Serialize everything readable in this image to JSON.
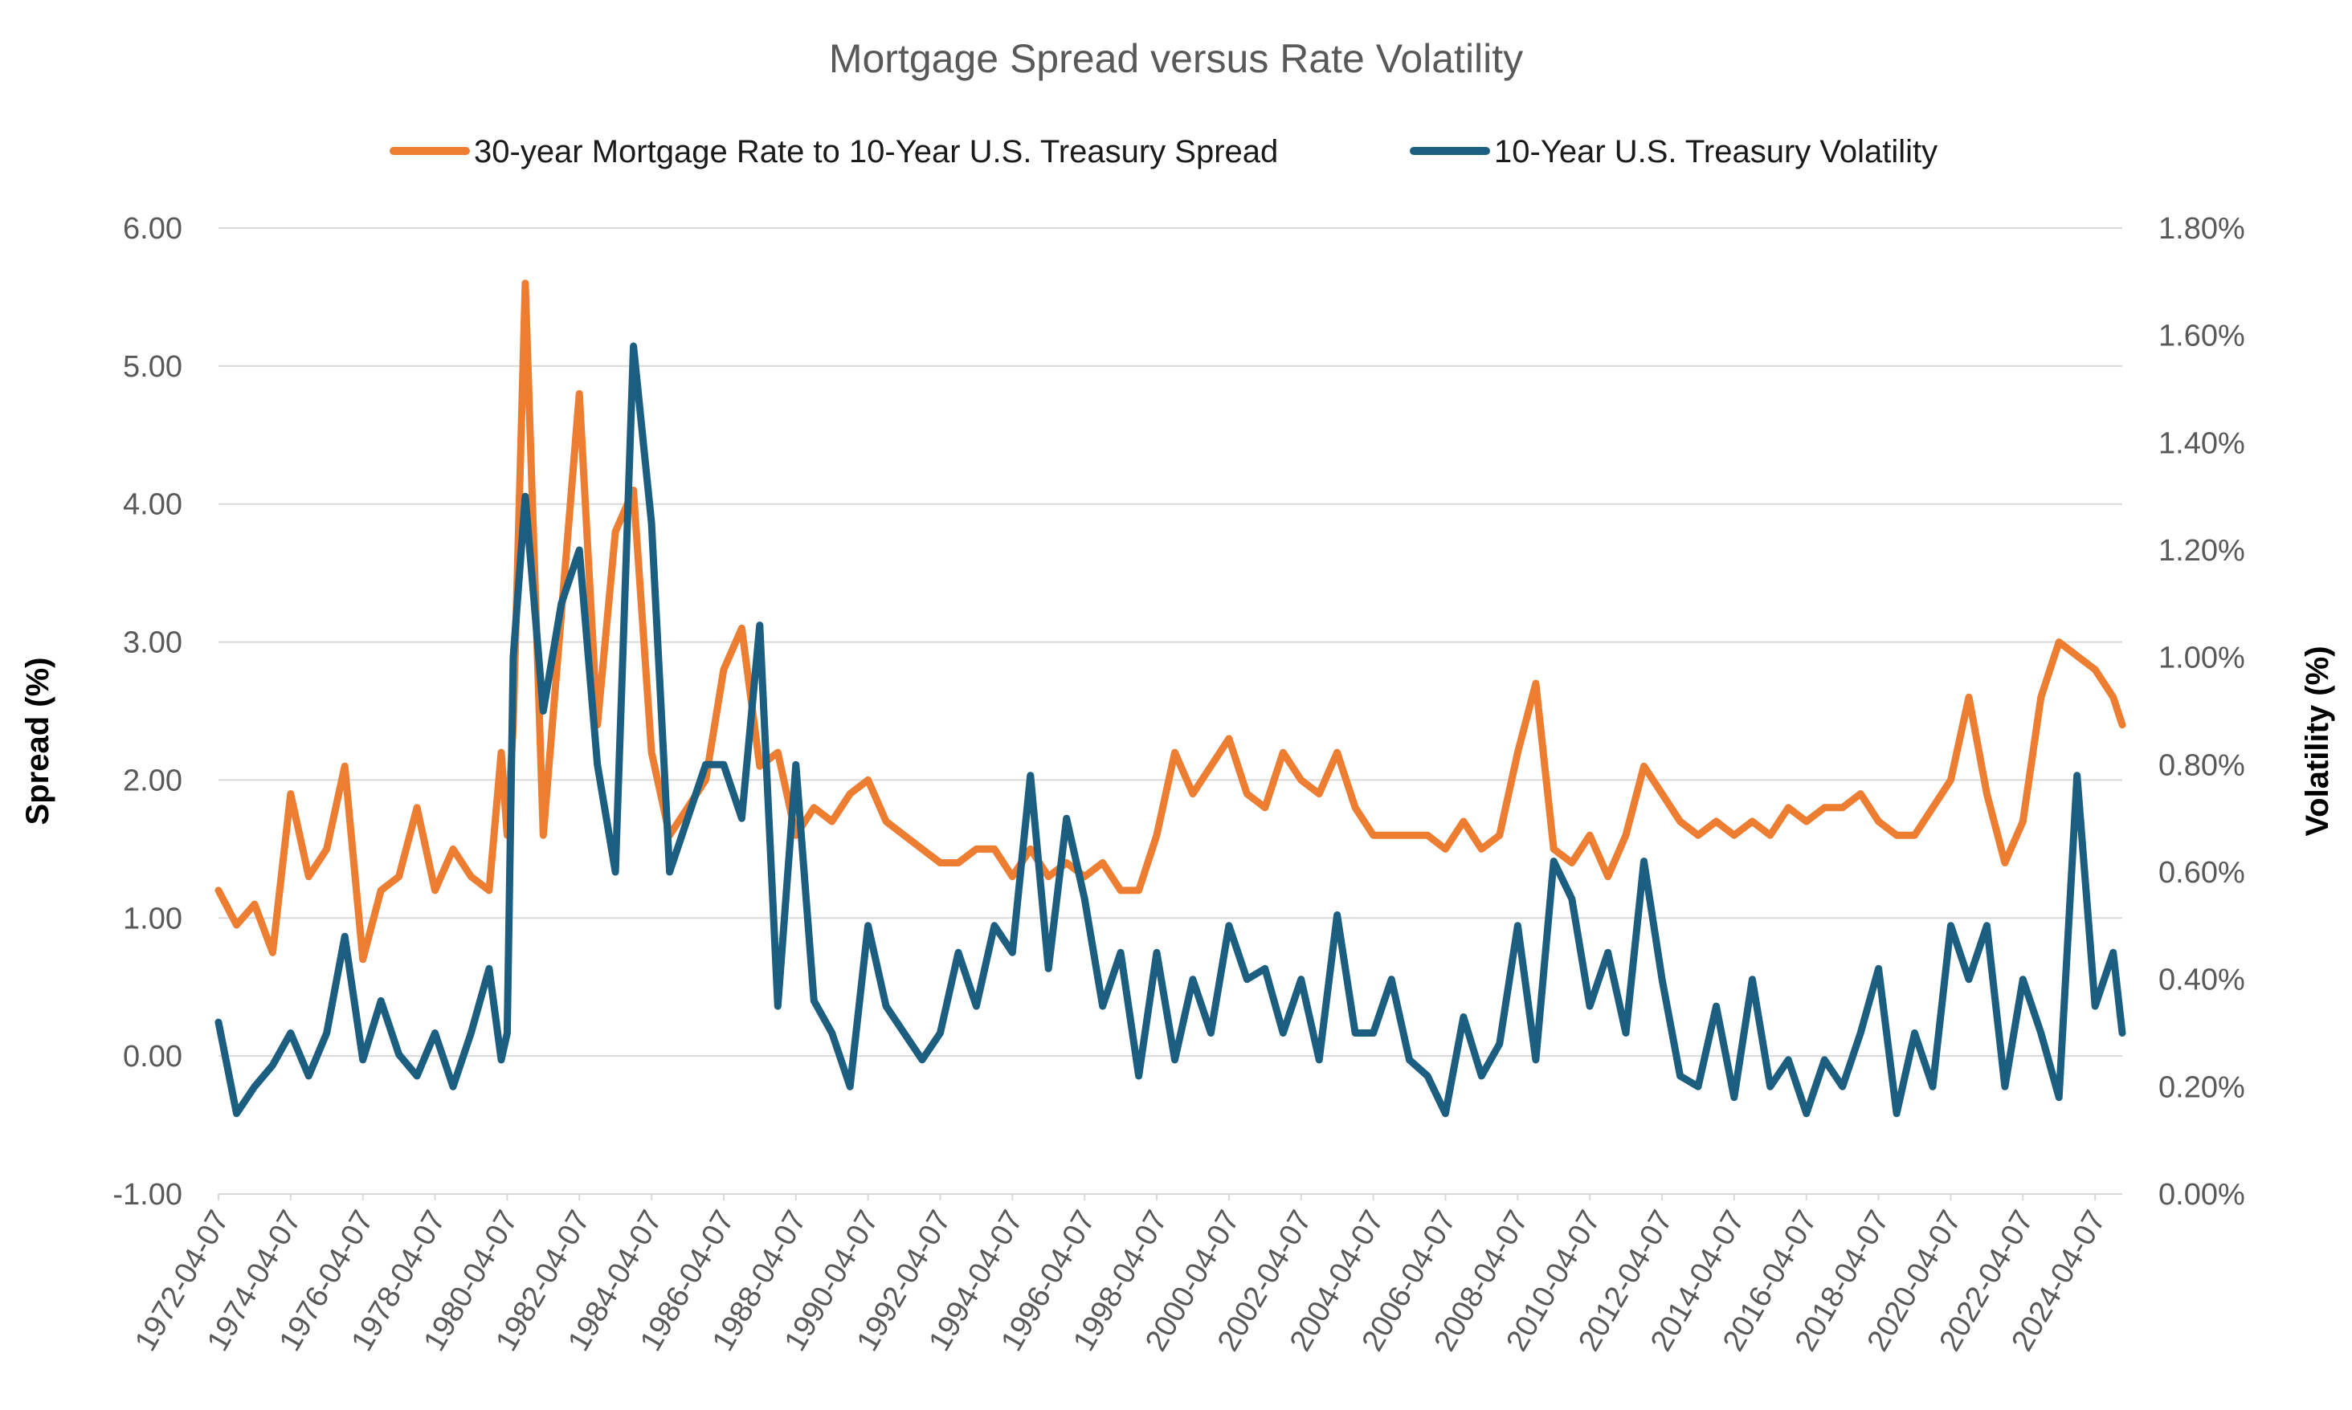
{
  "chart_data": {
    "type": "line",
    "title": "Mortgage Spread versus Rate Volatility",
    "ylabel_left": "Spread (%)",
    "ylabel_right": "Volatility (%)",
    "y_left_range": [
      -1.0,
      6.0
    ],
    "y_right_range": [
      0.0,
      1.8
    ],
    "y_left_ticks": [
      "6.00",
      "5.00",
      "4.00",
      "3.00",
      "2.00",
      "1.00",
      "0.00",
      "-1.00"
    ],
    "y_right_ticks": [
      "1.80%",
      "1.60%",
      "1.40%",
      "1.20%",
      "1.00%",
      "0.80%",
      "0.60%",
      "0.40%",
      "0.20%",
      "0.00%"
    ],
    "x_tick_labels": [
      "1972-04-07",
      "1974-04-07",
      "1976-04-07",
      "1978-04-07",
      "1980-04-07",
      "1982-04-07",
      "1984-04-07",
      "1986-04-07",
      "1988-04-07",
      "1990-04-07",
      "1992-04-07",
      "1994-04-07",
      "1996-04-07",
      "1998-04-07",
      "2000-04-07",
      "2002-04-07",
      "2004-04-07",
      "2006-04-07",
      "2008-04-07",
      "2010-04-07",
      "2012-04-07",
      "2014-04-07",
      "2016-04-07",
      "2018-04-07",
      "2020-04-07",
      "2022-04-07",
      "2024-04-07"
    ],
    "grid": true,
    "legend_position": "top",
    "series": [
      {
        "name": "30-year Mortgage Rate to 10-Year U.S. Treasury Spread",
        "axis": "left",
        "color": "#ED7D31",
        "x": [
          "1972-04-07",
          "1972-10-07",
          "1973-04-07",
          "1973-10-07",
          "1974-04-07",
          "1974-10-07",
          "1975-04-07",
          "1975-10-07",
          "1976-04-07",
          "1976-10-07",
          "1977-04-07",
          "1977-10-07",
          "1978-04-07",
          "1978-10-07",
          "1979-04-07",
          "1979-10-07",
          "1980-02-07",
          "1980-04-07",
          "1980-06-07",
          "1980-10-07",
          "1981-04-07",
          "1981-10-07",
          "1982-04-07",
          "1982-10-07",
          "1983-04-07",
          "1983-10-07",
          "1984-04-07",
          "1984-10-07",
          "1985-04-07",
          "1985-10-07",
          "1986-04-07",
          "1986-10-07",
          "1987-04-07",
          "1987-10-07",
          "1988-04-07",
          "1988-10-07",
          "1989-04-07",
          "1989-10-07",
          "1990-04-07",
          "1990-10-07",
          "1991-04-07",
          "1991-10-07",
          "1992-04-07",
          "1992-10-07",
          "1993-04-07",
          "1993-10-07",
          "1994-04-07",
          "1994-10-07",
          "1995-04-07",
          "1995-10-07",
          "1996-04-07",
          "1996-10-07",
          "1997-04-07",
          "1997-10-07",
          "1998-04-07",
          "1998-10-07",
          "1999-04-07",
          "1999-10-07",
          "2000-04-07",
          "2000-10-07",
          "2001-04-07",
          "2001-10-07",
          "2002-04-07",
          "2002-10-07",
          "2003-04-07",
          "2003-10-07",
          "2004-04-07",
          "2004-10-07",
          "2005-04-07",
          "2005-10-07",
          "2006-04-07",
          "2006-10-07",
          "2007-04-07",
          "2007-10-07",
          "2008-04-07",
          "2008-10-07",
          "2009-04-07",
          "2009-10-07",
          "2010-04-07",
          "2010-10-07",
          "2011-04-07",
          "2011-10-07",
          "2012-04-07",
          "2012-10-07",
          "2013-04-07",
          "2013-10-07",
          "2014-04-07",
          "2014-10-07",
          "2015-04-07",
          "2015-10-07",
          "2016-04-07",
          "2016-10-07",
          "2017-04-07",
          "2017-10-07",
          "2018-04-07",
          "2018-10-07",
          "2019-04-07",
          "2019-10-07",
          "2020-04-07",
          "2020-10-07",
          "2021-04-07",
          "2021-10-07",
          "2022-04-07",
          "2022-10-07",
          "2023-04-07",
          "2023-10-07",
          "2024-04-07",
          "2024-10-07",
          "2025-01-07"
        ],
        "values": [
          1.2,
          0.95,
          1.1,
          0.75,
          1.9,
          1.3,
          1.5,
          2.1,
          0.7,
          1.2,
          1.3,
          1.8,
          1.2,
          1.5,
          1.3,
          1.2,
          2.2,
          1.6,
          2.4,
          5.6,
          1.6,
          3.2,
          4.8,
          2.4,
          3.8,
          4.1,
          2.2,
          1.6,
          1.8,
          2.0,
          2.8,
          3.1,
          2.1,
          2.2,
          1.6,
          1.8,
          1.7,
          1.9,
          2.0,
          1.7,
          1.6,
          1.5,
          1.4,
          1.4,
          1.5,
          1.5,
          1.3,
          1.5,
          1.3,
          1.4,
          1.3,
          1.4,
          1.2,
          1.2,
          1.6,
          2.2,
          1.9,
          2.1,
          2.3,
          1.9,
          1.8,
          2.2,
          2.0,
          1.9,
          2.2,
          1.8,
          1.6,
          1.6,
          1.6,
          1.6,
          1.5,
          1.7,
          1.5,
          1.6,
          2.2,
          2.7,
          1.5,
          1.4,
          1.6,
          1.3,
          1.6,
          2.1,
          1.9,
          1.7,
          1.6,
          1.7,
          1.6,
          1.7,
          1.6,
          1.8,
          1.7,
          1.8,
          1.8,
          1.9,
          1.7,
          1.6,
          1.6,
          1.8,
          2.0,
          2.6,
          1.9,
          1.4,
          1.7,
          2.6,
          3.0,
          2.9,
          2.8,
          2.6,
          2.4
        ]
      },
      {
        "name": "10-Year U.S. Treasury Volatility",
        "axis": "right",
        "color": "#1B5E80",
        "x": [
          "1972-04-07",
          "1972-10-07",
          "1973-04-07",
          "1973-10-07",
          "1974-04-07",
          "1974-10-07",
          "1975-04-07",
          "1975-10-07",
          "1976-04-07",
          "1976-10-07",
          "1977-04-07",
          "1977-10-07",
          "1978-04-07",
          "1978-10-07",
          "1979-04-07",
          "1979-10-07",
          "1980-02-07",
          "1980-04-07",
          "1980-06-07",
          "1980-10-07",
          "1981-04-07",
          "1981-10-07",
          "1982-04-07",
          "1982-10-07",
          "1983-04-07",
          "1983-10-07",
          "1984-04-07",
          "1984-10-07",
          "1985-04-07",
          "1985-10-07",
          "1986-04-07",
          "1986-10-07",
          "1987-04-07",
          "1987-10-07",
          "1988-04-07",
          "1988-10-07",
          "1989-04-07",
          "1989-10-07",
          "1990-04-07",
          "1990-10-07",
          "1991-04-07",
          "1991-10-07",
          "1992-04-07",
          "1992-10-07",
          "1993-04-07",
          "1993-10-07",
          "1994-04-07",
          "1994-10-07",
          "1995-04-07",
          "1995-10-07",
          "1996-04-07",
          "1996-10-07",
          "1997-04-07",
          "1997-10-07",
          "1998-04-07",
          "1998-10-07",
          "1999-04-07",
          "1999-10-07",
          "2000-04-07",
          "2000-10-07",
          "2001-04-07",
          "2001-10-07",
          "2002-04-07",
          "2002-10-07",
          "2003-04-07",
          "2003-10-07",
          "2004-04-07",
          "2004-10-07",
          "2005-04-07",
          "2005-10-07",
          "2006-04-07",
          "2006-10-07",
          "2007-04-07",
          "2007-10-07",
          "2008-04-07",
          "2008-10-07",
          "2009-04-07",
          "2009-10-07",
          "2010-04-07",
          "2010-10-07",
          "2011-04-07",
          "2011-10-07",
          "2012-04-07",
          "2012-10-07",
          "2013-04-07",
          "2013-10-07",
          "2014-04-07",
          "2014-10-07",
          "2015-04-07",
          "2015-10-07",
          "2016-04-07",
          "2016-10-07",
          "2017-04-07",
          "2017-10-07",
          "2018-04-07",
          "2018-10-07",
          "2019-04-07",
          "2019-10-07",
          "2020-04-07",
          "2020-10-07",
          "2021-04-07",
          "2021-10-07",
          "2022-04-07",
          "2022-10-07",
          "2023-04-07",
          "2023-10-07",
          "2024-04-07",
          "2024-10-07",
          "2025-01-07"
        ],
        "values": [
          0.32,
          0.15,
          0.2,
          0.24,
          0.3,
          0.22,
          0.3,
          0.48,
          0.25,
          0.36,
          0.26,
          0.22,
          0.3,
          0.2,
          0.3,
          0.42,
          0.25,
          0.3,
          1.0,
          1.3,
          0.9,
          1.1,
          1.2,
          0.8,
          0.6,
          1.58,
          1.25,
          0.6,
          0.7,
          0.8,
          0.8,
          0.7,
          1.06,
          0.35,
          0.8,
          0.36,
          0.3,
          0.2,
          0.5,
          0.35,
          0.3,
          0.25,
          0.3,
          0.45,
          0.35,
          0.5,
          0.45,
          0.78,
          0.42,
          0.7,
          0.55,
          0.35,
          0.45,
          0.22,
          0.45,
          0.25,
          0.4,
          0.3,
          0.5,
          0.4,
          0.42,
          0.3,
          0.4,
          0.25,
          0.52,
          0.3,
          0.3,
          0.4,
          0.25,
          0.22,
          0.15,
          0.33,
          0.22,
          0.28,
          0.5,
          0.25,
          0.62,
          0.55,
          0.35,
          0.45,
          0.3,
          0.62,
          0.4,
          0.22,
          0.2,
          0.35,
          0.18,
          0.4,
          0.2,
          0.25,
          0.15,
          0.25,
          0.2,
          0.3,
          0.42,
          0.15,
          0.3,
          0.2,
          0.5,
          0.4,
          0.5,
          0.2,
          0.4,
          0.3,
          0.18,
          0.78,
          0.35,
          0.45,
          0.3
        ]
      }
    ]
  }
}
